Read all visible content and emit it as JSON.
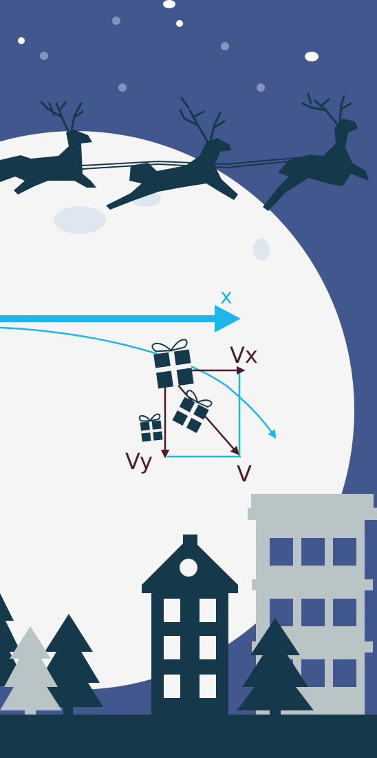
{
  "labels": {
    "x_axis": "x",
    "vx": "Vx",
    "vy": "Vy",
    "v": "V"
  },
  "colors": {
    "sky": "#41578d",
    "moon": "#f5f5f6",
    "moon_crater": "#dfe6f0",
    "silhouette": "#16384b",
    "arrow_blue": "#1fb6ea",
    "vector_dark": "#4a1c28",
    "building_light": "#b9c4c6",
    "tree_light": "#b9c4c6",
    "star": "#8593bd"
  }
}
